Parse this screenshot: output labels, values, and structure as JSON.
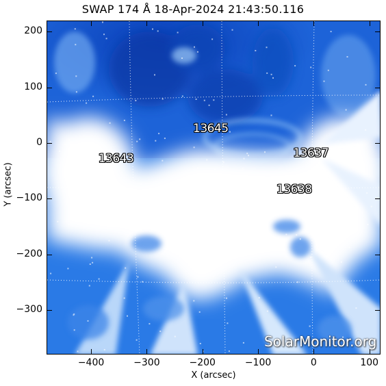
{
  "title": "SWAP 174 Å 18-Apr-2024 21:43:50.116",
  "axes": {
    "xlabel": "X (arcsec)",
    "ylabel": "Y (arcsec)",
    "xlim": [
      -480,
      120
    ],
    "ylim": [
      -380,
      220
    ],
    "xticks": [
      {
        "value": -400,
        "label": "−400"
      },
      {
        "value": -300,
        "label": "−300"
      },
      {
        "value": -200,
        "label": "−200"
      },
      {
        "value": -100,
        "label": "−100"
      },
      {
        "value": 0,
        "label": "0"
      },
      {
        "value": 100,
        "label": "100"
      }
    ],
    "yticks": [
      {
        "value": 200,
        "label": "200"
      },
      {
        "value": 100,
        "label": "100"
      },
      {
        "value": 0,
        "label": "0"
      },
      {
        "value": -100,
        "label": "−100"
      },
      {
        "value": -200,
        "label": "−200"
      },
      {
        "value": -300,
        "label": "−300"
      }
    ]
  },
  "active_regions": [
    {
      "label": "13645",
      "x": -180,
      "y": 25
    },
    {
      "label": "13643",
      "x": -350,
      "y": -30
    },
    {
      "label": "13637",
      "x": 0,
      "y": -20
    },
    {
      "label": "13638",
      "x": -30,
      "y": -85
    }
  ],
  "watermark": "SolarMonitor.org",
  "colors": {
    "dark_blue": "#0a3fb8",
    "mid_blue": "#2a7ae6",
    "light_blue": "#8cc0f5",
    "saturated": "#ffffff"
  }
}
